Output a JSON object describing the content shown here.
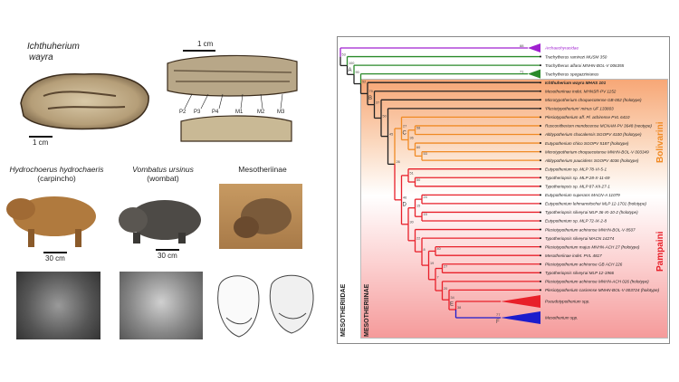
{
  "left": {
    "fossil_title_line1": "Ichthuherium",
    "fossil_title_line2": "wayra",
    "scale_skull": "1 cm",
    "scale_teeth": "1 cm",
    "teeth_labels": [
      "P2",
      "P3",
      "P4",
      "M1",
      "M2",
      "M3"
    ],
    "animals": [
      {
        "name": "Hydrochoerus hydrochaeris",
        "common": "(carpincho)",
        "scale": "30 cm"
      },
      {
        "name": "Vombatus ursinus",
        "common": "(wombat)",
        "scale": "30 cm"
      },
      {
        "name": "Mesotheriinae",
        "common": "",
        "scale": ""
      }
    ]
  },
  "tree": {
    "colors": {
      "purple": "#a020d0",
      "green": "#2a8a2a",
      "black": "#222222",
      "orange": "#f08a24",
      "red": "#e8202a",
      "blue": "#1c1ccc"
    },
    "taxa": [
      {
        "label": "Archaeohyracidae",
        "color": "purple",
        "collapsed": true
      },
      {
        "label": "Trachytherus ramirezi MUSM 350",
        "color": "green"
      },
      {
        "label": "Trachytherus alfaroi MNHN-BOL-V 006355",
        "color": "green"
      },
      {
        "label": "Trachytherus spegazzinianus",
        "color": "green",
        "collapsed": true
      },
      {
        "label": "Ichthuherium wayra MHAS 101",
        "color": "black",
        "bold": true
      },
      {
        "label": "Mesotheriinae indet. MHNSR-PV 1152",
        "color": "black"
      },
      {
        "label": "Microtypotherium choquecotense GB-002 (holotype)",
        "color": "black"
      },
      {
        "label": "'Plesiotypotherium' minus UF 133803",
        "color": "black"
      },
      {
        "label": "Plesiotypotherium aff. Pl. achirense PVL 6410",
        "color": "orange"
      },
      {
        "label": "Rusconitherium mendocense MCNAM-PV 3648 (neotype)",
        "color": "orange"
      },
      {
        "label": "Altitypotherium chucalensis SGOPV 4100 (holotype)",
        "color": "orange"
      },
      {
        "label": "Eutypotherium chico SGOPV 5187 (holotype)",
        "color": "orange"
      },
      {
        "label": "Microtypotherium choquecotense MNHN-BOL-V 003349",
        "color": "orange"
      },
      {
        "label": "Altitypotherium paucidens SGOPV 4036 (holotype)",
        "color": "orange"
      },
      {
        "label": "Eutypotherium sp. MLP 78-VI-5-1",
        "color": "red"
      },
      {
        "label": "Typotheriopsis sp. MLP 28-X-11-69",
        "color": "red"
      },
      {
        "label": "Typotheriopsis sp. MLP 87-XII-27-1",
        "color": "red"
      },
      {
        "label": "Eutypotherium superans MACN-A 11079",
        "color": "red"
      },
      {
        "label": "Eutypotherium lehmannitschei MLP 12-1701 (holotype)",
        "color": "red"
      },
      {
        "label": "Typotheriopsis silveyrai MLP 36-XI-10-2 (holotype)",
        "color": "red"
      },
      {
        "label": "Eutypotherium sp. MLP 72-IX-2-8",
        "color": "red"
      },
      {
        "label": "Plesiotypotherium achirense MNHN-BOL-V 8507",
        "color": "red"
      },
      {
        "label": "Typotheriopsis silveyrai MACN 14274",
        "color": "red"
      },
      {
        "label": "Plesiotypotherium majus MNHN-ACH 27 (holotype)",
        "color": "red"
      },
      {
        "label": "Mesotheriinae indet. PVL 4817",
        "color": "red"
      },
      {
        "label": "Plesiotypotherium achirense GB ACH 226",
        "color": "red"
      },
      {
        "label": "Typotheriopsis silveyrai MLP 12-1966",
        "color": "red"
      },
      {
        "label": "Plesiotypotherium achirense MNHN-ACH 026 (holotype)",
        "color": "red"
      },
      {
        "label": "Plesiotypotherium casirense MNHN-BOL-V 003724 (holotype)",
        "color": "red"
      },
      {
        "label": "Pseudotypotherium spp.",
        "color": "red",
        "collapsed": true
      },
      {
        "label": "Mesotherium spp.",
        "color": "blue",
        "collapsed": true
      }
    ],
    "node_letters": {
      "A": "A",
      "B": "B",
      "C": "C",
      "D": "D",
      "E": "E",
      "F": "F"
    },
    "supports": {
      "root": "53",
      "arch": "88",
      "A": "100",
      "n2": "90",
      "n52": "52",
      "spg": "71",
      "B": "79",
      "n5": "37",
      "n6": "50",
      "n7": "45",
      "n26": "26",
      "C": "27",
      "n36": "36",
      "n58": "58",
      "n60": "60",
      "n53": "53",
      "D": "46",
      "n51": "51",
      "n50": "50",
      "n30": "30",
      "n15a": "15",
      "n24": "24",
      "n15b": "15",
      "n22": "22",
      "n8": "8",
      "n19": "19",
      "n40": "40",
      "n7b": "7",
      "n27": "27",
      "n20": "20",
      "E": "34",
      "n38": "38",
      "F": "77"
    },
    "clade_labels": {
      "bolivarini": "Bolivarini",
      "pampaini": "Pampaini",
      "family": "MESOTHERIIDAE",
      "subfamily": "MESOTHERIINAE"
    }
  }
}
